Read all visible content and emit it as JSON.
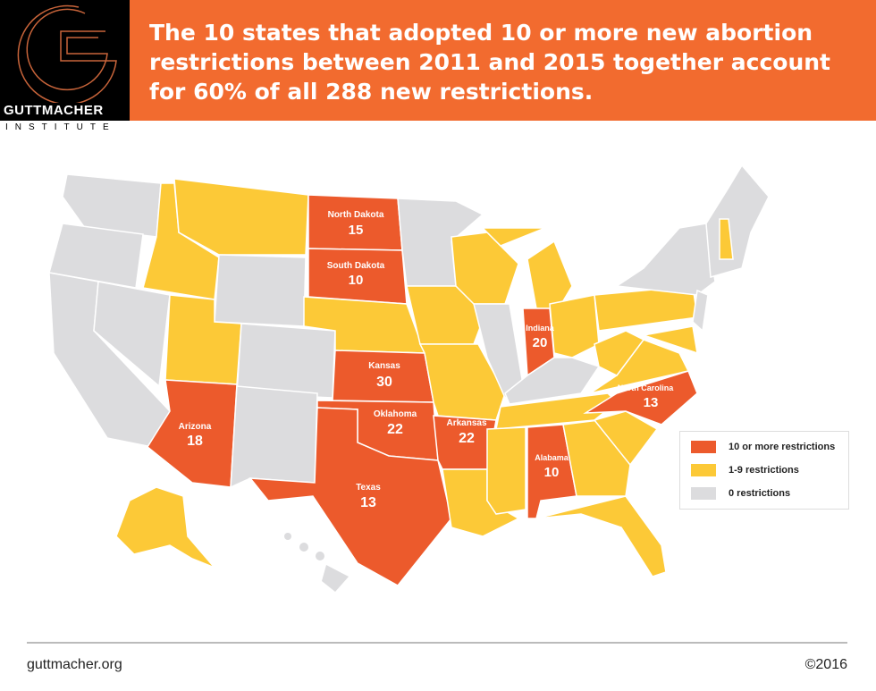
{
  "logo": {
    "name": "GUTTMACHER",
    "sub": "INSTITUTE"
  },
  "title": "The 10 states that adopted 10 or more new abortion restrictions between 2011 and 2015 together account for 60% of all 288 new restrictions.",
  "colors": {
    "high": "#ec5a2c",
    "low": "#fcc937",
    "none": "#dcdcde",
    "banner": "#f26b2f"
  },
  "states": [
    {
      "name": "North Dakota",
      "value": "15"
    },
    {
      "name": "South Dakota",
      "value": "10"
    },
    {
      "name": "Indiana",
      "value": "20"
    },
    {
      "name": "Kansas",
      "value": "30"
    },
    {
      "name": "North Carolina",
      "value": "13"
    },
    {
      "name": "Oklahoma",
      "value": "22"
    },
    {
      "name": "Arkansas",
      "value": "22"
    },
    {
      "name": "Arizona",
      "value": "18"
    },
    {
      "name": "Alabama",
      "value": "10"
    },
    {
      "name": "Texas",
      "value": "13"
    }
  ],
  "legend": [
    {
      "label": "10 or more restrictions",
      "color": "#ec5a2c"
    },
    {
      "label": "1-9 restrictions",
      "color": "#fcc937"
    },
    {
      "label": "0 restrictions",
      "color": "#dcdcde"
    }
  ],
  "footer": {
    "url": "guttmacher.org",
    "copyright": "©2016"
  }
}
